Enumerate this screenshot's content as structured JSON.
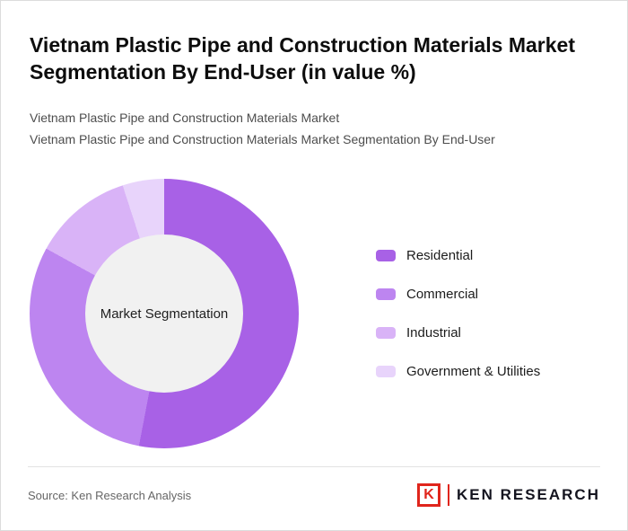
{
  "header": {
    "title": "Vietnam Plastic Pipe and Construction Materials Market Segmentation By End-User (in value %)",
    "subtitle_line1": "Vietnam Plastic Pipe and Construction Materials Market",
    "subtitle_line2": "Vietnam Plastic Pipe and Construction Materials Market Segmentation By End-User"
  },
  "chart_data": {
    "type": "pie",
    "variant": "donut",
    "title": "Vietnam Plastic Pipe and Construction Materials Market Segmentation By End-User (in value %)",
    "center_label": "Market Segmentation",
    "legend_position": "right",
    "start_angle_deg": 0,
    "direction": "clockwise",
    "segments": [
      {
        "label": "Residential",
        "value": 53,
        "color": "#a861e6"
      },
      {
        "label": "Commercial",
        "value": 30,
        "color": "#bd85f0"
      },
      {
        "label": "Industrial",
        "value": 12,
        "color": "#d9b3f7"
      },
      {
        "label": "Government & Utilities",
        "value": 5,
        "color": "#e8d4fb"
      }
    ]
  },
  "footer": {
    "source": "Source: Ken Research Analysis",
    "logo": {
      "mark": "K",
      "text": "KEN RESEARCH",
      "accent_color": "#e0251c"
    }
  }
}
